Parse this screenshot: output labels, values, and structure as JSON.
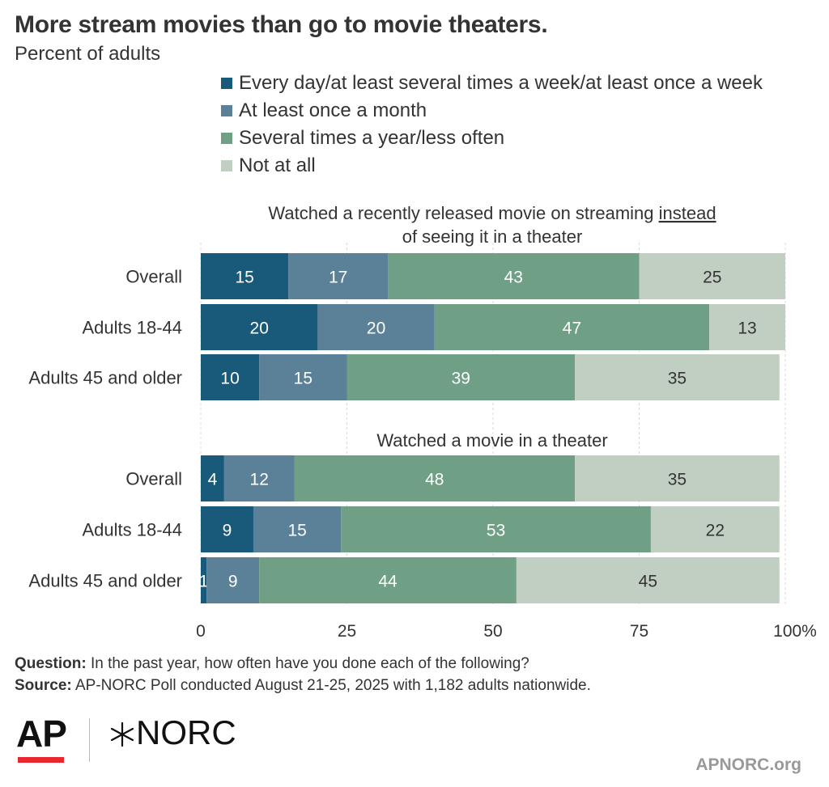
{
  "header": {
    "title": "More stream movies than go to movie theaters.",
    "subtitle": "Percent of adults"
  },
  "legend": [
    {
      "label": "Every day/at least several times a week/at least once a week",
      "color": "#19597a"
    },
    {
      "label": "At least once a month",
      "color": "#5b8199"
    },
    {
      "label": "Several times a year/less often",
      "color": "#6fa085"
    },
    {
      "label": "Not at all",
      "color": "#c1cfc3"
    }
  ],
  "chart_data": {
    "type": "bar",
    "orientation": "horizontal",
    "stacked": true,
    "xlim": [
      0,
      100
    ],
    "x_ticks": [
      "0",
      "25",
      "50",
      "75",
      "100%"
    ],
    "grid": true,
    "legend_position": "top",
    "series_names": [
      "Every day/at least several times a week/at least once a week",
      "At least once a month",
      "Several times a year/less often",
      "Not at all"
    ],
    "panels": [
      {
        "title_line1_pre": "Watched a recently released movie on streaming ",
        "title_line1_underlined": "instead",
        "title_line2": "of seeing it in a theater",
        "categories": [
          "Overall",
          "Adults 18-44",
          "Adults 45 and older"
        ],
        "values": [
          [
            15,
            17,
            43,
            25
          ],
          [
            20,
            20,
            47,
            13
          ],
          [
            10,
            15,
            39,
            35
          ]
        ]
      },
      {
        "title_line1_pre": "Watched a movie in a theater",
        "title_line1_underlined": "",
        "title_line2": "",
        "categories": [
          "Overall",
          "Adults 18-44",
          "Adults 45 and older"
        ],
        "values": [
          [
            4,
            12,
            48,
            35
          ],
          [
            9,
            15,
            53,
            22
          ],
          [
            1,
            9,
            44,
            45
          ]
        ]
      }
    ]
  },
  "footer": {
    "question_label": "Question:",
    "question_text": "In the past year, how often have you done each of the following?",
    "source_label": "Source:",
    "source_text": "AP-NORC Poll conducted August 21-25, 2025 with 1,182 adults nationwide."
  },
  "logos": {
    "ap": "AP",
    "norc": "NORC",
    "site": "APNORC.org"
  }
}
